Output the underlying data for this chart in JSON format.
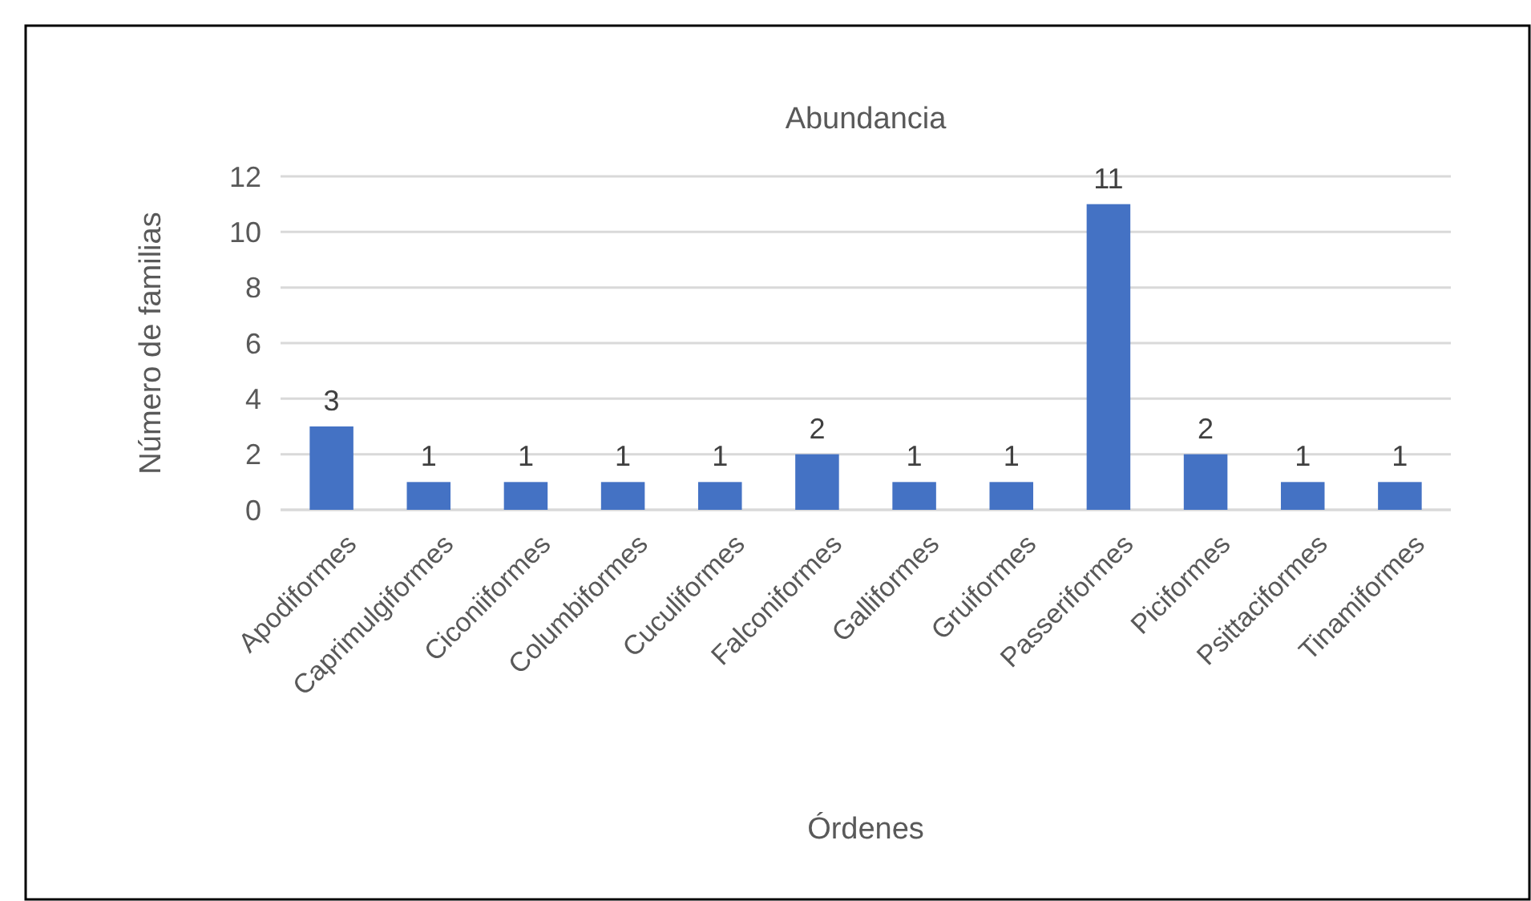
{
  "chart_data": {
    "type": "bar",
    "title": "Abundancia",
    "xlabel": "Órdenes",
    "ylabel": "Número de familias",
    "categories": [
      "Apodiformes",
      "Caprimulgiformes",
      "Ciconiiformes",
      "Columbiformes",
      "Cuculiformes",
      "Falconiformes",
      "Galliformes",
      "Gruiformes",
      "Passeriformes",
      "Piciformes",
      "Psittaciformes",
      "Tinamiformes"
    ],
    "values": [
      3,
      1,
      1,
      1,
      1,
      2,
      1,
      1,
      11,
      2,
      1,
      1
    ],
    "color": "#4472c4",
    "ylim": [
      0,
      12
    ],
    "yticks": [
      0,
      2,
      4,
      6,
      8,
      10,
      12
    ],
    "grid": "y",
    "data_labels": true
  }
}
